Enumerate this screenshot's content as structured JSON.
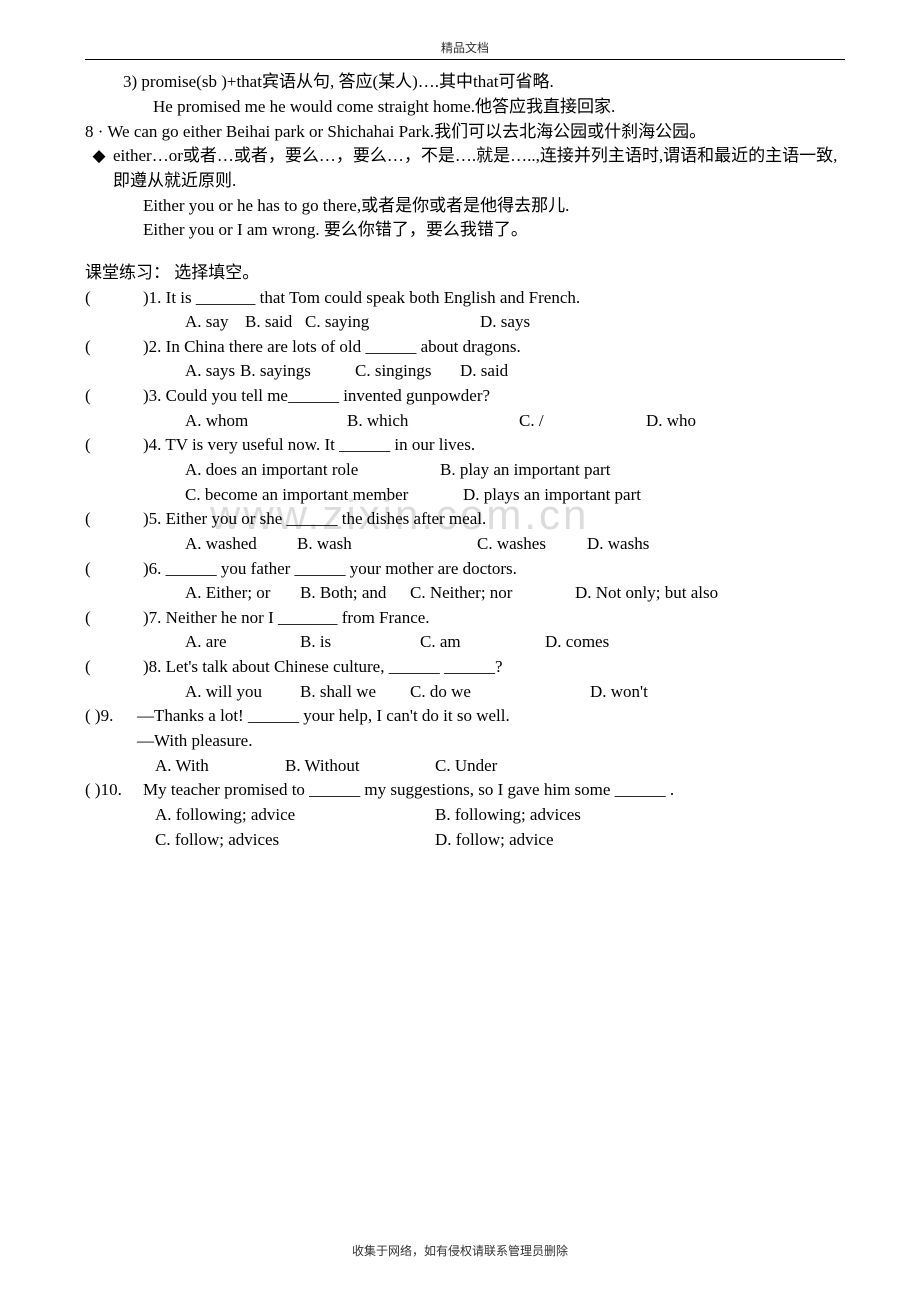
{
  "header": "精品文档",
  "footer": "收集于网络，如有侵权请联系管理员删除",
  "watermark": "www.zixin.com.cn",
  "notes": {
    "n1_3": "3)   promise(sb )+that宾语从句, 答应(某人)….其中that可省略.",
    "n1_3ex": "He promised me he would come straight home.他答应我直接回家.",
    "n8": "8 · We can go either Beihai park or Shichahai Park.我们可以去北海公园或什刹海公园。",
    "bullet_mark": "◆",
    "n8_b1": "either…or或者…或者，要么…，要么…，不是….就是…..,连接并列主语时,谓语和最近的主语一致,即遵从就近原则.",
    "n8_ex1": "Either you or he has to go there,或者是你或者是他得去那儿.",
    "n8_ex2": "Either you or I am wrong. 要么你错了，要么我错了。"
  },
  "section_title": "课堂练习： 选择填空。",
  "q": [
    {
      "num": ")1.",
      "text": "It is _______ that Tom could speak both English and French.",
      "opts": [
        [
          "A. say",
          "60px"
        ],
        [
          "B. said",
          "60px"
        ],
        [
          "C. saying",
          "175px"
        ],
        [
          "D. says",
          "80px"
        ]
      ]
    },
    {
      "num": ")2.",
      "text": "In China there are lots of old ______ about dragons.",
      "opts": [
        [
          "A. says",
          "55px"
        ],
        [
          "B. sayings",
          "115px"
        ],
        [
          "C. singings",
          "105px"
        ],
        [
          "D. said",
          "80px"
        ]
      ]
    },
    {
      "num": ")3.",
      "text": "Could you tell me______ invented gunpowder?",
      "opts": [
        [
          "A. whom",
          "162px"
        ],
        [
          "B. which",
          "172px"
        ],
        [
          "C. /",
          "127px"
        ],
        [
          "D. who",
          "80px"
        ]
      ]
    },
    {
      "num": ")4.",
      "text": "TV is very useful now. It ______ in our lives.",
      "opts_rows": [
        [
          [
            "A. does an important role",
            "255px"
          ],
          [
            "B. play an important part",
            "250px"
          ]
        ],
        [
          [
            "C. become an important member",
            "278px"
          ],
          [
            "D. plays an important part",
            "250px"
          ]
        ]
      ]
    },
    {
      "num": ")5.",
      "text": "Either you or she ______ the dishes after meal.",
      "opts": [
        [
          "A. washed",
          "112px"
        ],
        [
          "B. wash",
          "180px"
        ],
        [
          "C. washes",
          "110px"
        ],
        [
          "D. washs",
          "80px"
        ]
      ]
    },
    {
      "num": ")6.",
      "text": "______ you father ______ your mother are doctors.",
      "opts": [
        [
          "A. Either; or",
          "115px"
        ],
        [
          "B. Both; and",
          "110px"
        ],
        [
          "C. Neither; nor",
          "165px"
        ],
        [
          "D. Not only; but also",
          "180px"
        ]
      ]
    },
    {
      "num": ")7.",
      "text": "Neither he nor I _______ from France.",
      "opts": [
        [
          "A. are",
          "115px"
        ],
        [
          "B. is",
          "120px"
        ],
        [
          "C. am",
          "125px"
        ],
        [
          "D. comes",
          "80px"
        ]
      ]
    },
    {
      "num": ")8.",
      "text": "Let's talk about Chinese culture, ______ ______?",
      "opts": [
        [
          "A. will you",
          "115px"
        ],
        [
          "B. shall we",
          "110px"
        ],
        [
          "C. do we",
          "180px"
        ],
        [
          "D. won't",
          "80px"
        ]
      ]
    }
  ],
  "q9": {
    "paren": "(   )9.",
    "line1": "—Thanks a lot! ______ your help, I can't do it so well.",
    "line2": "—With pleasure.",
    "opts": [
      [
        "A. With",
        "130px"
      ],
      [
        "B. Without",
        "150px"
      ],
      [
        "C. Under",
        "100px"
      ]
    ]
  },
  "q10": {
    "paren": "(   )10.",
    "text": "My teacher promised to ______ my suggestions, so I gave him some ______ .",
    "opts_rows": [
      [
        [
          "A. following; advice",
          "280px"
        ],
        [
          "B. following; advices",
          "200px"
        ]
      ],
      [
        [
          "C. follow; advices",
          "280px"
        ],
        [
          "D. follow; advice",
          "200px"
        ]
      ]
    ]
  }
}
